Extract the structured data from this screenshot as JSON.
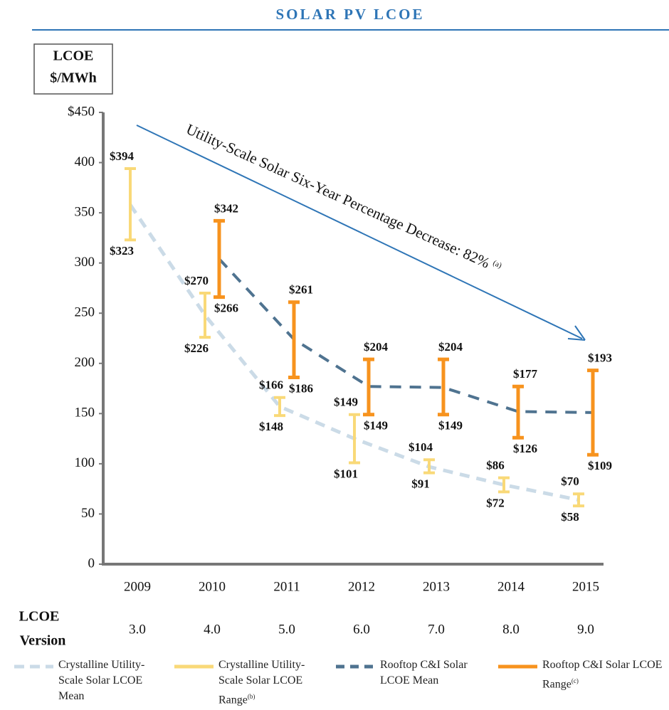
{
  "chart_data": {
    "type": "range",
    "title": "SOLAR PV LCOE",
    "ylabel_lines": [
      "LCOE",
      "$/MWh"
    ],
    "categories": [
      "2009",
      "2010",
      "2011",
      "2012",
      "2013",
      "2014",
      "2015"
    ],
    "version_label_lines": [
      "LCOE",
      "Version"
    ],
    "versions": [
      "3.0",
      "4.0",
      "5.0",
      "6.0",
      "7.0",
      "8.0",
      "9.0"
    ],
    "ylim": [
      0,
      450
    ],
    "yticks": [
      0,
      50,
      100,
      150,
      200,
      250,
      300,
      350,
      400,
      {
        "value": 450,
        "label": "$450"
      }
    ],
    "annotation": {
      "text": "Utility-Scale Solar Six-Year Percentage Decrease: 82%",
      "footnote": "(a)"
    },
    "series": [
      {
        "name": "Crystalline Utility-Scale Solar LCOE Mean",
        "kind": "line",
        "style": "dashed-light",
        "color": "#cbdbe7",
        "values": [
          358,
          248,
          157,
          125,
          97,
          79,
          64
        ]
      },
      {
        "name": "Crystalline Utility-Scale Solar LCOE Range",
        "footnote": "(b)",
        "kind": "range",
        "color": "#f9d978",
        "low": [
          323,
          226,
          148,
          101,
          91,
          72,
          58
        ],
        "high": [
          394,
          270,
          166,
          149,
          104,
          86,
          70
        ],
        "low_labels": [
          "$323",
          "$226",
          "$148",
          "$101",
          "$91",
          "$72",
          "$58"
        ],
        "high_labels": [
          "$394",
          "$270",
          "$166",
          "$149",
          "$104",
          "$86",
          "$70"
        ]
      },
      {
        "name": "Rooftop C&I Solar LCOE Mean",
        "kind": "line",
        "style": "dashed-dark",
        "color": "#4f7390",
        "values": [
          null,
          304,
          224,
          177,
          176,
          152,
          151
        ]
      },
      {
        "name": "Rooftop C&I Solar LCOE Range",
        "footnote": "(c)",
        "kind": "range",
        "color": "#f7931e",
        "low": [
          null,
          266,
          186,
          149,
          149,
          126,
          109
        ],
        "high": [
          null,
          342,
          261,
          204,
          204,
          177,
          193
        ],
        "low_labels": [
          null,
          "$266",
          "$186",
          "$149",
          "$149",
          "$126",
          "$109"
        ],
        "high_labels": [
          null,
          "$342",
          "$261",
          "$204",
          "$204",
          "$177",
          "$193"
        ]
      }
    ]
  }
}
